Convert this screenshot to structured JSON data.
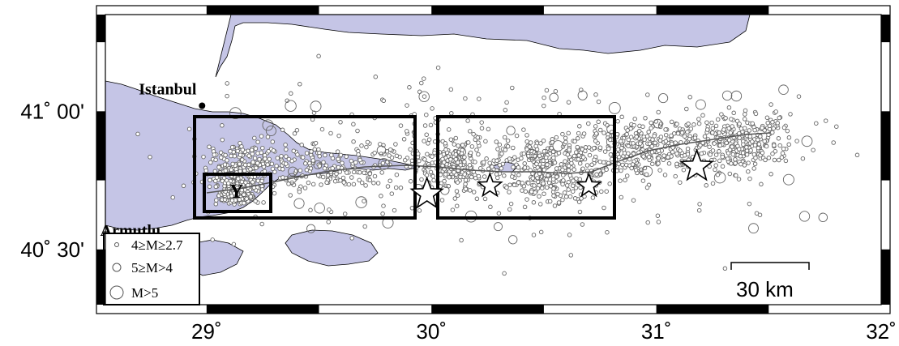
{
  "map": {
    "sea_color": "#c5c5e6",
    "frame_color": "#000000",
    "lon_ticks": [
      {
        "lon": 29,
        "label": "29˚"
      },
      {
        "lon": 30,
        "label": "30˚"
      },
      {
        "lon": 31,
        "label": "31˚"
      },
      {
        "lon": 32,
        "label": "32˚"
      }
    ],
    "lat_ticks": [
      {
        "lat": 41.0,
        "label": "41˚ 00'"
      },
      {
        "lat": 40.5,
        "label": "40˚ 30'"
      }
    ],
    "extent": {
      "lon_min": 28.55,
      "lon_max": 32.0,
      "lat_min": 40.3,
      "lat_max": 41.35
    },
    "cities": [
      {
        "name": "Istanbul",
        "lon": 28.98,
        "lat": 41.02
      },
      {
        "name": "Armutlu",
        "lon": 28.83,
        "lat": 40.52
      }
    ],
    "region_label": "Y",
    "stars": [
      {
        "lon": 29.98,
        "lat": 40.7
      },
      {
        "lon": 30.26,
        "lat": 40.73
      },
      {
        "lon": 30.7,
        "lat": 40.73
      },
      {
        "lon": 31.18,
        "lat": 40.8
      }
    ],
    "legend": [
      {
        "symbol": "small-circle",
        "label": "4≥M≥2.7"
      },
      {
        "symbol": "medium-circle",
        "label": "5≥M>4"
      },
      {
        "symbol": "large-circle",
        "label": "M>5"
      }
    ],
    "scale_bar": {
      "label": "30 km"
    }
  }
}
